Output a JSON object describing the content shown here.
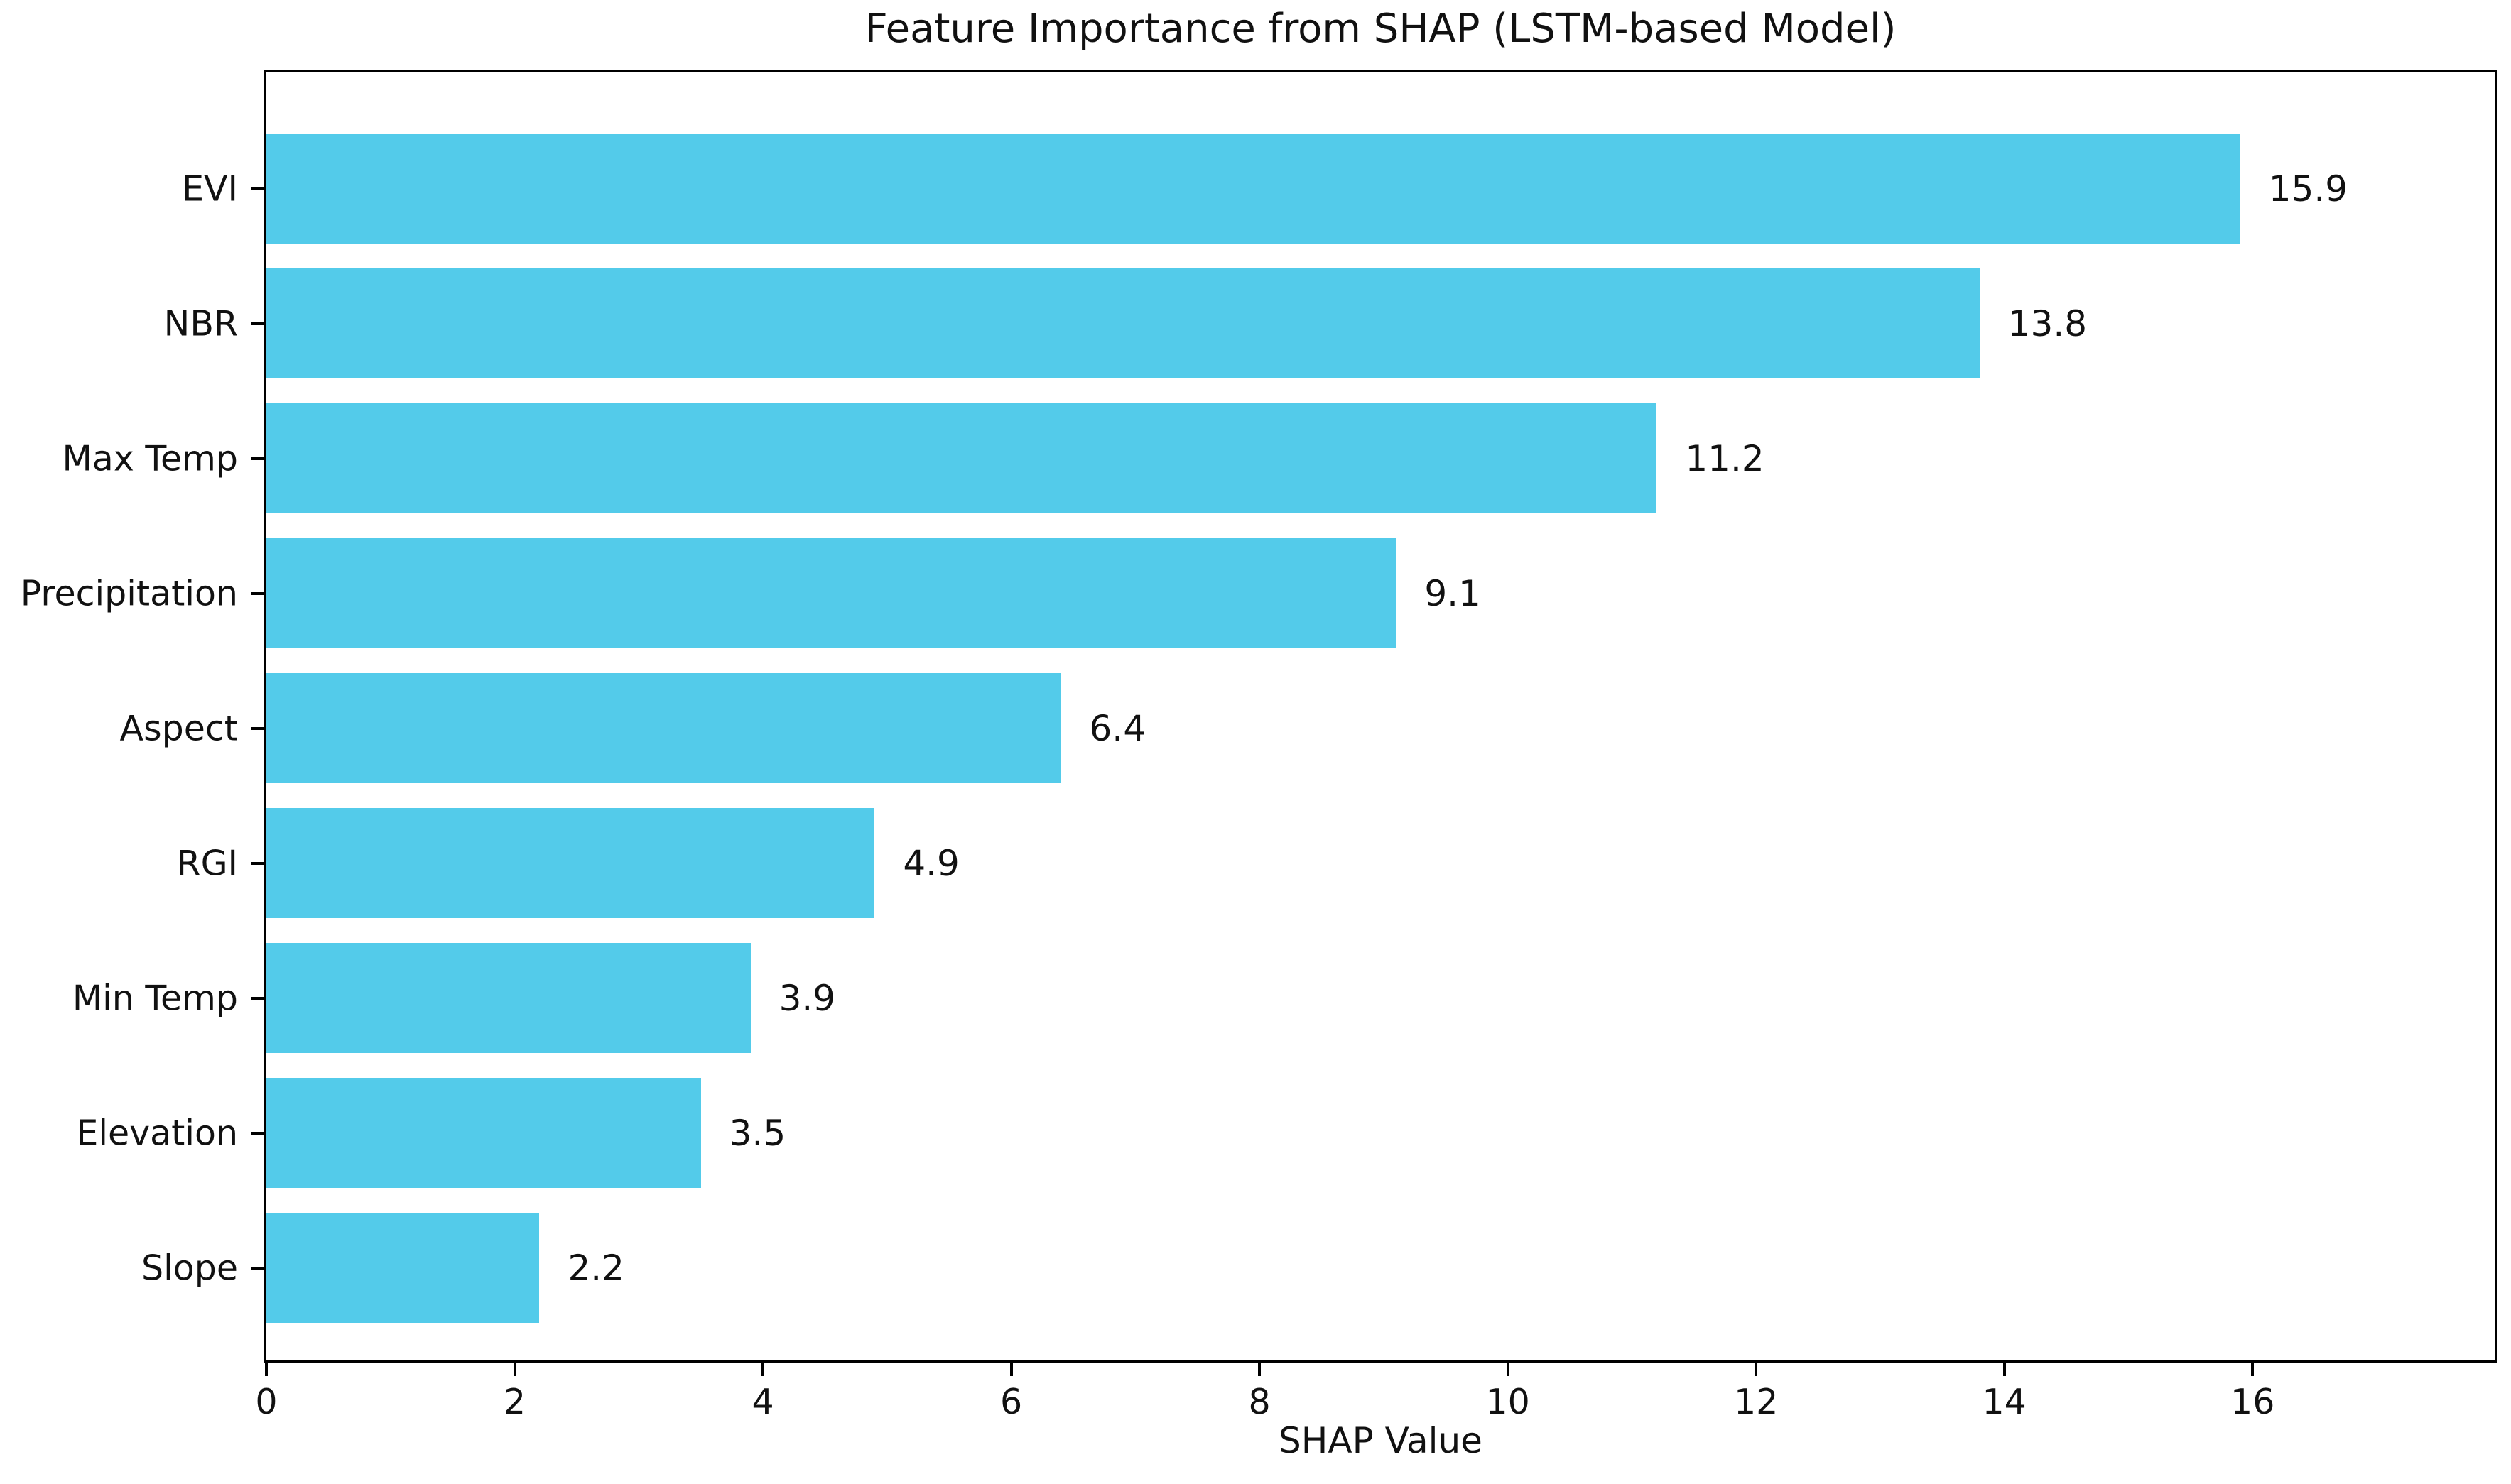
{
  "chart_data": {
    "type": "bar",
    "orientation": "horizontal",
    "title": "Feature Importance from SHAP (LSTM-based Model)",
    "xlabel": "SHAP Value",
    "ylabel": "",
    "categories": [
      "EVI",
      "NBR",
      "Max Temp",
      "Precipitation",
      "Aspect",
      "RGI",
      "Min Temp",
      "Elevation",
      "Slope"
    ],
    "values": [
      15.9,
      13.8,
      11.2,
      9.1,
      6.4,
      4.9,
      3.9,
      3.5,
      2.2
    ],
    "value_labels": [
      "15.9",
      "13.8",
      "11.2",
      "9.1",
      "6.4",
      "4.9",
      "3.9",
      "3.5",
      "2.2"
    ],
    "xlim": [
      0,
      17.95
    ],
    "xticks": [
      0,
      2,
      4,
      6,
      8,
      10,
      12,
      14,
      16
    ],
    "bar_color": "#53cbea",
    "grid": false,
    "legend": null,
    "background_color": "#ffffff"
  }
}
